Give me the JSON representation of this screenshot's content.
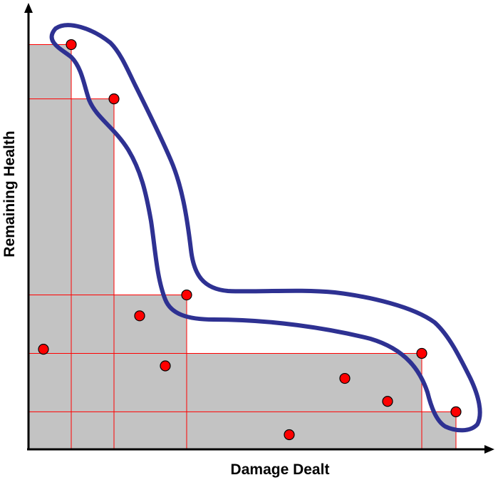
{
  "diagram": {
    "x_axis_label": "Damage Dealt",
    "y_axis_label": "Remaining Health",
    "colors": {
      "dominated_region": "#c3c3c3",
      "grid_lines": "#ff0000",
      "points": "#ff0000",
      "frontier_outline": "#2e3192",
      "axes": "#000000"
    },
    "points": [
      {
        "damage": 1.0,
        "health": 9.7,
        "on_frontier": true
      },
      {
        "damage": 2.0,
        "health": 8.4,
        "on_frontier": true
      },
      {
        "damage": 3.7,
        "health": 3.7,
        "on_frontier": true
      },
      {
        "damage": 9.2,
        "health": 2.3,
        "on_frontier": true
      },
      {
        "damage": 10.0,
        "health": 0.9,
        "on_frontier": true
      },
      {
        "damage": 0.35,
        "health": 2.4,
        "on_frontier": false
      },
      {
        "damage": 2.6,
        "health": 3.2,
        "on_frontier": false
      },
      {
        "damage": 3.2,
        "health": 2.0,
        "on_frontier": false
      },
      {
        "damage": 6.1,
        "health": 0.35,
        "on_frontier": false
      },
      {
        "damage": 7.4,
        "health": 1.7,
        "on_frontier": false
      },
      {
        "damage": 8.4,
        "health": 1.15,
        "on_frontier": false
      }
    ]
  }
}
